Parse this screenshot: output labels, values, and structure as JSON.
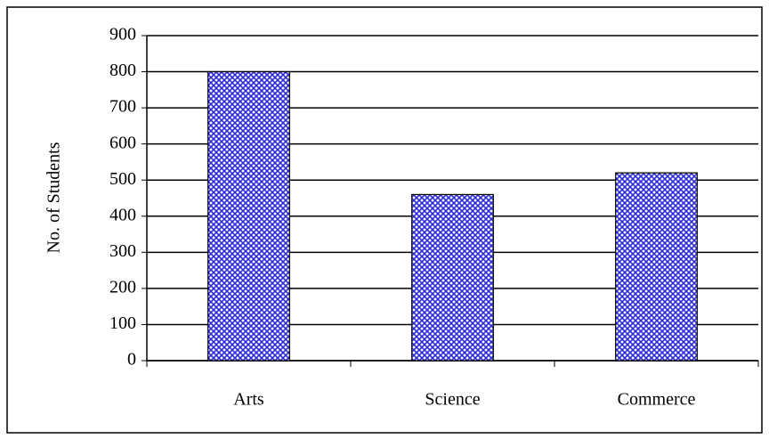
{
  "chart_data": {
    "type": "bar",
    "y_label": "No. of Students",
    "categories": [
      "Arts",
      "Science",
      "Commerce"
    ],
    "values": [
      800,
      460,
      520
    ],
    "color": "#2b2bd6",
    "ylim": [
      0,
      900
    ],
    "yticks": [
      0,
      100,
      200,
      300,
      400,
      500,
      600,
      700,
      800,
      900
    ],
    "grid": true
  }
}
